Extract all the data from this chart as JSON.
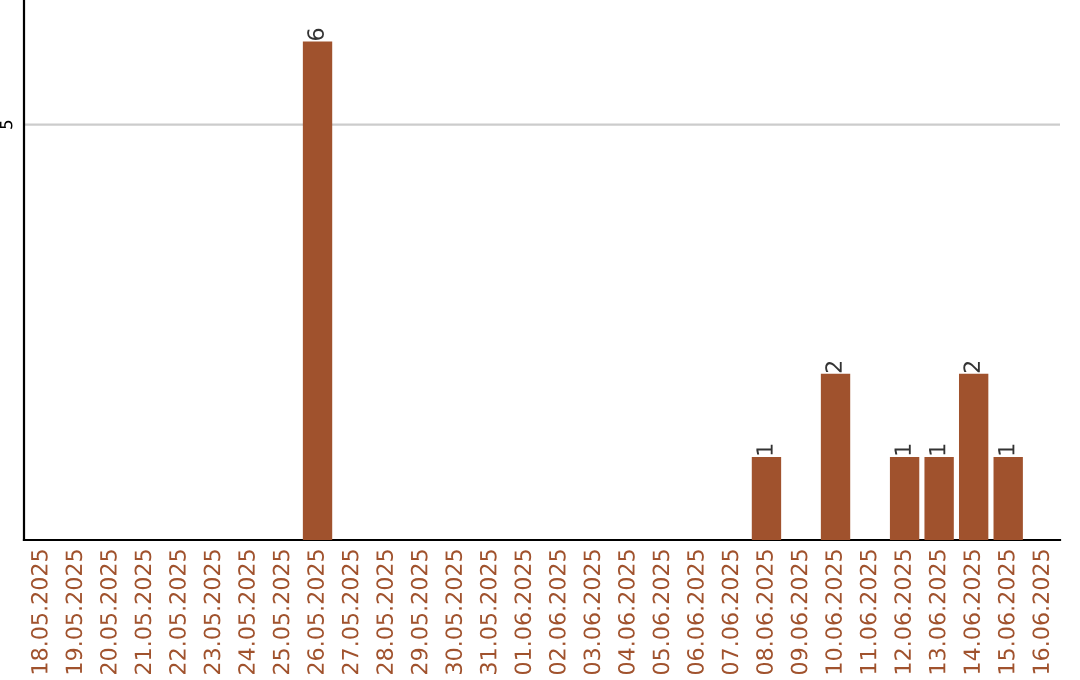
{
  "chart_data": {
    "type": "bar",
    "categories": [
      "18.05.2025",
      "19.05.2025",
      "20.05.2025",
      "21.05.2025",
      "22.05.2025",
      "23.05.2025",
      "24.05.2025",
      "25.05.2025",
      "26.05.2025",
      "27.05.2025",
      "28.05.2025",
      "29.05.2025",
      "30.05.2025",
      "31.05.2025",
      "01.06.2025",
      "02.06.2025",
      "03.06.2025",
      "04.06.2025",
      "05.06.2025",
      "06.06.2025",
      "07.06.2025",
      "08.06.2025",
      "09.06.2025",
      "10.06.2025",
      "11.06.2025",
      "12.06.2025",
      "13.06.2025",
      "14.06.2025",
      "15.06.2025",
      "16.06.2025"
    ],
    "values": [
      0,
      0,
      0,
      0,
      0,
      0,
      0,
      0,
      6,
      0,
      0,
      0,
      0,
      0,
      0,
      0,
      0,
      0,
      0,
      0,
      0,
      1,
      0,
      2,
      0,
      1,
      1,
      2,
      1,
      0
    ],
    "value_labels": [
      null,
      null,
      null,
      null,
      null,
      null,
      null,
      null,
      "6",
      null,
      null,
      null,
      null,
      null,
      null,
      null,
      null,
      null,
      null,
      null,
      null,
      "1",
      null,
      "2",
      null,
      "1",
      "1",
      "2",
      "1",
      null
    ],
    "color": "#a0522d",
    "ylim": [
      0,
      6.5
    ],
    "yticks": [
      5
    ],
    "grid": "y"
  }
}
